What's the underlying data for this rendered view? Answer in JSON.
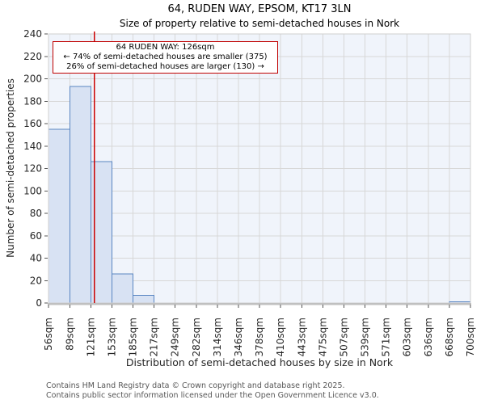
{
  "title": "64, RUDEN WAY, EPSOM, KT17 3LN",
  "subtitle": "Size of property relative to semi-detached houses in Nork",
  "annotation": {
    "line1": "64 RUDEN WAY: 126sqm",
    "line2": "← 74% of semi-detached houses are smaller (375)",
    "line3": "26% of semi-detached houses are larger (130) →"
  },
  "footer": {
    "line1": "Contains HM Land Registry data © Crown copyright and database right 2025.",
    "line2": "Contains public sector information licensed under the Open Government Licence v3.0."
  },
  "chart_data": {
    "type": "bar",
    "title": "64, RUDEN WAY, EPSOM, KT17 3LN",
    "subtitle": "Size of property relative to semi-detached houses in Nork",
    "xlabel": "Distribution of semi-detached houses by size in Nork",
    "ylabel": "Number of semi-detached properties",
    "x_tick_suffix": "sqm",
    "bin_edges": [
      56,
      89,
      121,
      153,
      185,
      217,
      249,
      282,
      314,
      346,
      378,
      410,
      443,
      475,
      507,
      539,
      571,
      603,
      636,
      668,
      700
    ],
    "values": [
      155,
      193,
      126,
      26,
      7,
      0,
      0,
      0,
      0,
      0,
      0,
      0,
      0,
      0,
      0,
      0,
      0,
      0,
      0,
      1
    ],
    "xlim": [
      56,
      700
    ],
    "ylim": [
      0,
      240
    ],
    "ytick_step": 20,
    "marker_value": 126,
    "marker_label": "64 RUDEN WAY: 126sqm",
    "smaller_pct": 74,
    "smaller_count": 375,
    "larger_pct": 26,
    "larger_count": 130,
    "grid": true,
    "legend_position": "none",
    "colors": {
      "bar_fill": "#d8e2f3",
      "bar_edge": "#5a86c2",
      "marker_line": "#cc0000",
      "plot_bg": "#f0f4fb",
      "grid_line": "#d7d7d7",
      "spine": "#cfcfcf",
      "axis_line": "#c0c0c0",
      "tick": "#555555",
      "tick_label": "#262626",
      "annotation_border": "#c00000",
      "annotation_bg": "#ffffff",
      "footer_text": "#575757"
    }
  }
}
